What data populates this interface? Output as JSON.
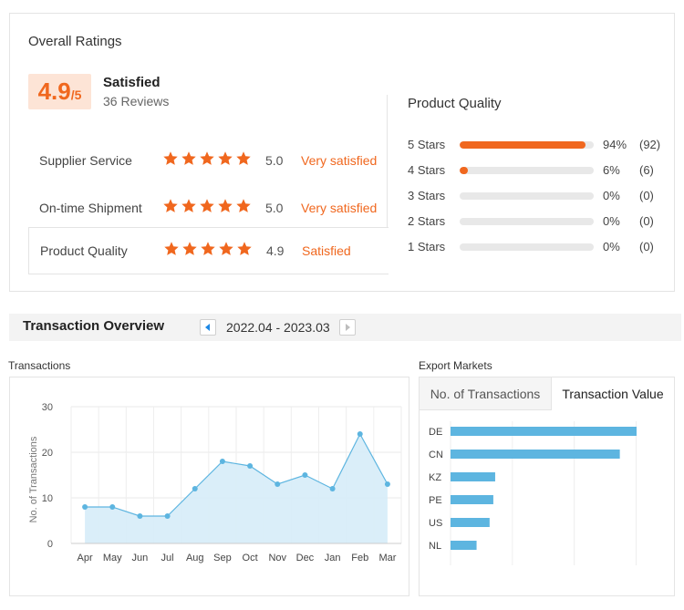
{
  "ratings": {
    "title": "Overall Ratings",
    "score": "4.9",
    "score_denominator": "/5",
    "overall_label": "Satisfied",
    "reviews": "36 Reviews",
    "rows": [
      {
        "label": "Supplier Service",
        "score": "5.0",
        "status": "Very satisfied",
        "stars": 5
      },
      {
        "label": "On-time Shipment",
        "score": "5.0",
        "status": "Very satisfied",
        "stars": 5
      },
      {
        "label": "Product Quality",
        "score": "4.9",
        "status": "Satisfied",
        "stars": 5
      }
    ],
    "star_color": "#f0671e",
    "accent": "#f0671e"
  },
  "quality": {
    "title": "Product Quality",
    "distribution": [
      {
        "label": "5 Stars",
        "fraction": 0.94,
        "pct": "94%",
        "count": "(92)"
      },
      {
        "label": "4 Stars",
        "fraction": 0.06,
        "pct": "6%",
        "count": "(6)"
      },
      {
        "label": "3 Stars",
        "fraction": 0,
        "pct": "0%",
        "count": "(0)"
      },
      {
        "label": "2 Stars",
        "fraction": 0,
        "pct": "0%",
        "count": "(0)"
      },
      {
        "label": "1 Stars",
        "fraction": 0,
        "pct": "0%",
        "count": "(0)"
      }
    ]
  },
  "transaction": {
    "title": "Transaction Overview",
    "date_range": "2022.04 - 2023.03",
    "prev_icon": "triangle-left-icon",
    "next_icon": "triangle-right-icon"
  },
  "transactions_label": "Transactions",
  "export_label": "Export Markets",
  "export_tabs": [
    "No. of Transactions",
    "Transaction Value"
  ],
  "chart_data": [
    {
      "type": "area",
      "ylabel": "No. of Transactions",
      "categories": [
        "Apr",
        "May",
        "Jun",
        "Jul",
        "Aug",
        "Sep",
        "Oct",
        "Nov",
        "Dec",
        "Jan",
        "Feb",
        "Mar"
      ],
      "values": [
        8,
        8,
        6,
        6,
        12,
        18,
        17,
        13,
        15,
        12,
        24,
        13
      ],
      "yticks": [
        "0",
        "10",
        "20",
        "30"
      ],
      "ylim": [
        0,
        30
      ],
      "grid": true,
      "color": "#5db5e0"
    },
    {
      "type": "bar",
      "orientation": "horizontal",
      "categories": [
        "DE",
        "CN",
        "KZ",
        "PE",
        "US",
        "NL"
      ],
      "values": [
        100,
        91,
        24,
        23,
        21,
        14
      ],
      "grid": true,
      "color": "#5db5e0"
    }
  ]
}
